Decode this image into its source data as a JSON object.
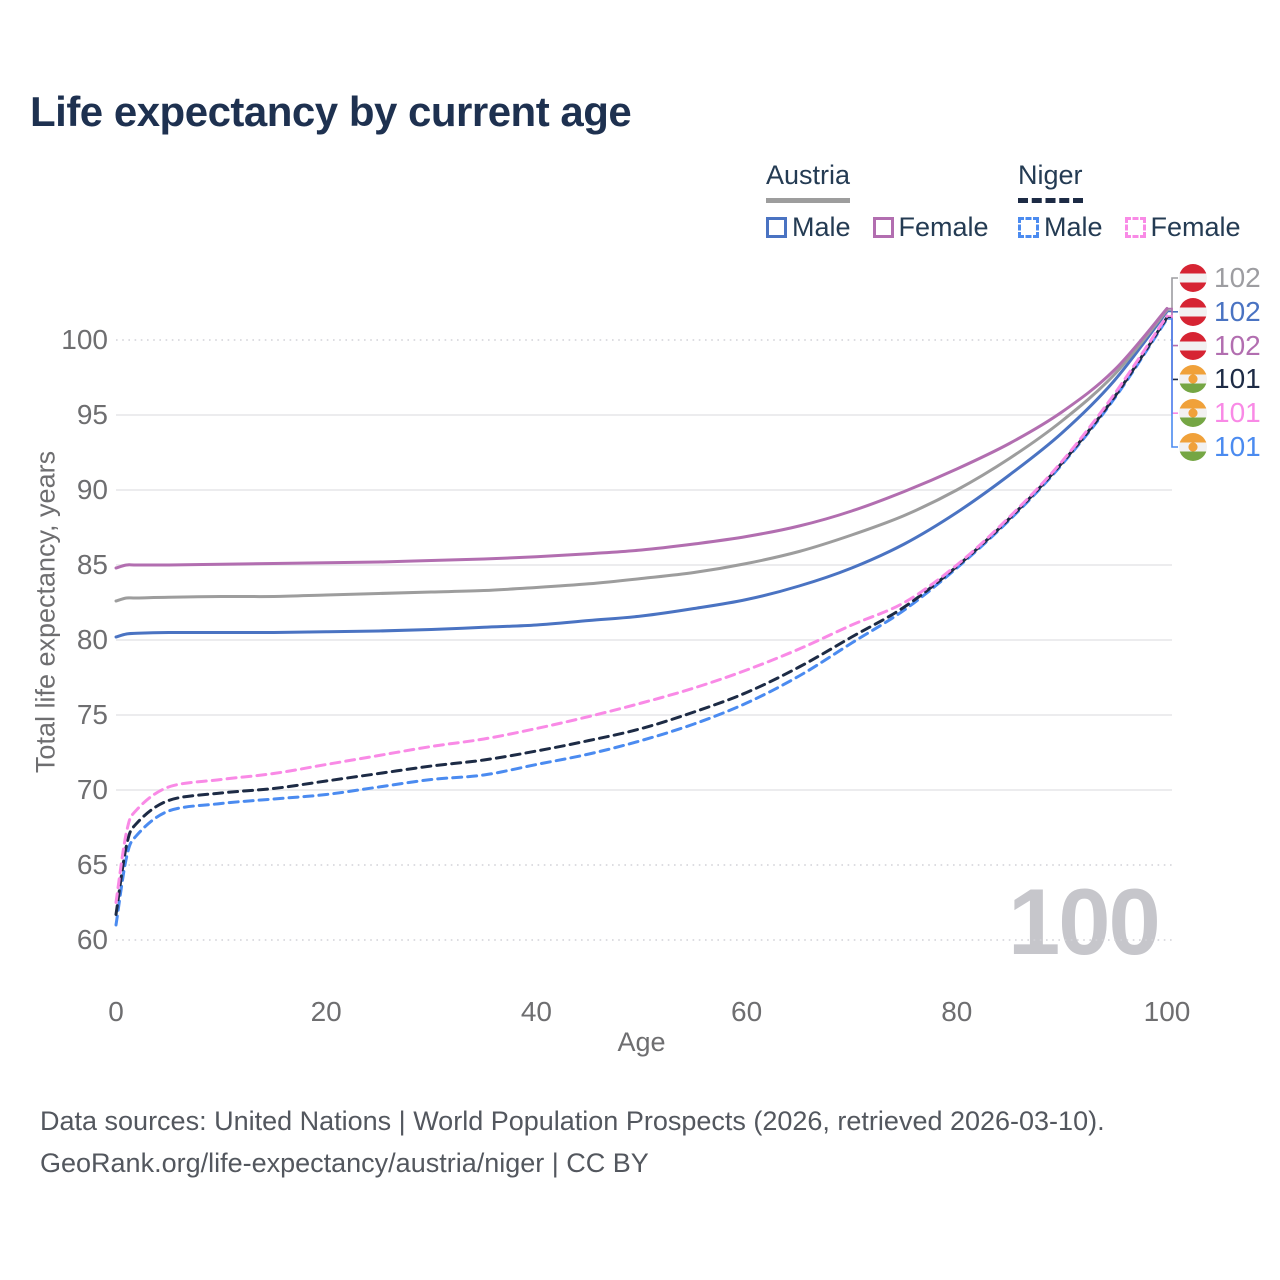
{
  "title": "Life expectancy by current age",
  "legend": {
    "groups": [
      {
        "name": "Austria",
        "line_style": "solid",
        "underline_color": "#9d9d9d",
        "items": [
          {
            "label": "Male",
            "color": "#4a73c2",
            "dash": false
          },
          {
            "label": "Female",
            "color": "#b26eb0",
            "dash": false
          }
        ]
      },
      {
        "name": "Niger",
        "line_style": "dashed",
        "underline_color": "#1d2b45",
        "items": [
          {
            "label": "Male",
            "color": "#4b8bf0",
            "dash": true
          },
          {
            "label": "Female",
            "color": "#f98ae6",
            "dash": true
          }
        ]
      }
    ]
  },
  "axes": {
    "x": {
      "label": "Age",
      "ticks": [
        0,
        20,
        40,
        60,
        80,
        100
      ],
      "range": [
        0,
        100
      ]
    },
    "y": {
      "label": "Total life expectancy, years",
      "ticks": [
        100,
        95,
        90,
        85,
        80,
        75,
        70,
        65,
        60
      ],
      "range": [
        60,
        102.5
      ],
      "dotted_levels": [
        100,
        65,
        60
      ]
    }
  },
  "watermark": "100",
  "end_labels": [
    {
      "value": "102",
      "color": "#9d9da1",
      "flag": "austria",
      "series_index": 2
    },
    {
      "value": "102",
      "color": "#4a73c2",
      "flag": "austria",
      "series_index": 0
    },
    {
      "value": "102",
      "color": "#b26eb0",
      "flag": "austria",
      "series_index": 1
    },
    {
      "value": "101",
      "color": "#1d2b45",
      "flag": "niger",
      "series_index": 5
    },
    {
      "value": "101",
      "color": "#f98ae6",
      "flag": "niger",
      "series_index": 4
    },
    {
      "value": "101",
      "color": "#4b8bf0",
      "flag": "niger",
      "series_index": 3
    }
  ],
  "footer": {
    "line1": "Data sources: United Nations | World Population Prospects (2026, retrieved 2026-03-10).",
    "line2": "GeoRank.org/life-expectancy/austria/niger | CC BY"
  },
  "chart_data": {
    "type": "line",
    "title": "Life expectancy by current age",
    "xlabel": "Age",
    "ylabel": "Total life expectancy, years",
    "xlim": [
      0,
      100
    ],
    "ylim": [
      60,
      102.5
    ],
    "grid": true,
    "legend_position": "top-right",
    "ages": [
      0,
      1,
      2,
      5,
      10,
      15,
      20,
      25,
      30,
      35,
      40,
      45,
      50,
      55,
      60,
      65,
      70,
      75,
      80,
      85,
      90,
      95,
      100
    ],
    "series": [
      {
        "name": "Austria Male",
        "color": "#4a73c2",
        "dash": false,
        "values": [
          80.2,
          80.4,
          80.45,
          80.5,
          80.5,
          80.5,
          80.55,
          80.6,
          80.7,
          80.85,
          81.0,
          81.3,
          81.6,
          82.1,
          82.7,
          83.6,
          84.8,
          86.4,
          88.5,
          91.0,
          93.8,
          97.3,
          101.9
        ]
      },
      {
        "name": "Austria Female",
        "color": "#b26eb0",
        "dash": false,
        "values": [
          84.8,
          85.0,
          85.0,
          85.0,
          85.05,
          85.1,
          85.15,
          85.2,
          85.3,
          85.4,
          85.55,
          85.75,
          86.0,
          86.4,
          86.9,
          87.6,
          88.6,
          89.9,
          91.4,
          93.1,
          95.2,
          98.0,
          102.1
        ]
      },
      {
        "name": "Austria Average",
        "color": "#9d9d9d",
        "dash": false,
        "values": [
          82.6,
          82.8,
          82.8,
          82.85,
          82.9,
          82.9,
          83.0,
          83.1,
          83.2,
          83.3,
          83.5,
          83.75,
          84.1,
          84.5,
          85.1,
          85.9,
          87.0,
          88.3,
          90.0,
          92.1,
          94.6,
          97.7,
          102.0
        ]
      },
      {
        "name": "Niger Male",
        "color": "#4b8bf0",
        "dash": true,
        "values": [
          61.0,
          65.5,
          67.0,
          68.6,
          69.1,
          69.4,
          69.7,
          70.2,
          70.7,
          71.0,
          71.7,
          72.4,
          73.3,
          74.4,
          75.8,
          77.6,
          79.8,
          82.0,
          84.8,
          88.0,
          91.7,
          96.1,
          101.4
        ]
      },
      {
        "name": "Niger Female",
        "color": "#f98ae6",
        "dash": true,
        "values": [
          62.5,
          67.2,
          68.7,
          70.2,
          70.7,
          71.1,
          71.7,
          72.3,
          72.9,
          73.4,
          74.1,
          74.9,
          75.8,
          76.8,
          78.0,
          79.4,
          81.0,
          82.5,
          85.0,
          88.2,
          91.9,
          96.4,
          101.6
        ]
      },
      {
        "name": "Niger Average",
        "color": "#1d2b45",
        "dash": true,
        "values": [
          61.7,
          66.3,
          67.8,
          69.3,
          69.8,
          70.1,
          70.6,
          71.1,
          71.6,
          72.0,
          72.6,
          73.3,
          74.1,
          75.2,
          76.5,
          78.2,
          80.2,
          82.2,
          84.9,
          88.1,
          91.8,
          96.2,
          101.5
        ]
      }
    ]
  }
}
